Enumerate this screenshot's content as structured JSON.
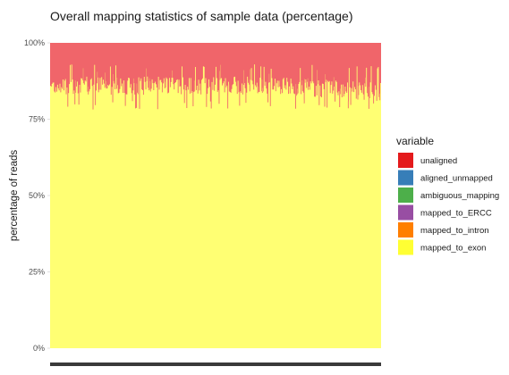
{
  "chart_data": {
    "type": "area",
    "title": "Overall mapping statistics of sample data (percentage)",
    "xlabel": "",
    "ylabel": "percentage of reads",
    "ylim": [
      0,
      100
    ],
    "yticks": [
      "0%",
      "25%",
      "50%",
      "75%",
      "100%"
    ],
    "grid": false,
    "stacked": true,
    "legend": {
      "title": "variable",
      "position": "right",
      "entries": [
        {
          "name": "unaligned",
          "color": "#e41a1c"
        },
        {
          "name": "aligned_unmapped",
          "color": "#377eb8"
        },
        {
          "name": "ambiguous_mapping",
          "color": "#4daf4a"
        },
        {
          "name": "mapped_to_ERCC",
          "color": "#984ea3"
        },
        {
          "name": "mapped_to_intron",
          "color": "#ff7f00"
        },
        {
          "name": "mapped_to_exon",
          "color": "#ffff33"
        }
      ]
    },
    "series": [
      {
        "name": "mapped_to_exon",
        "approx_percent_range": [
          78,
          93
        ],
        "approx_mean_percent": 86
      },
      {
        "name": "unaligned",
        "approx_percent_range": [
          7,
          22
        ],
        "approx_mean_percent": 14
      }
    ]
  }
}
